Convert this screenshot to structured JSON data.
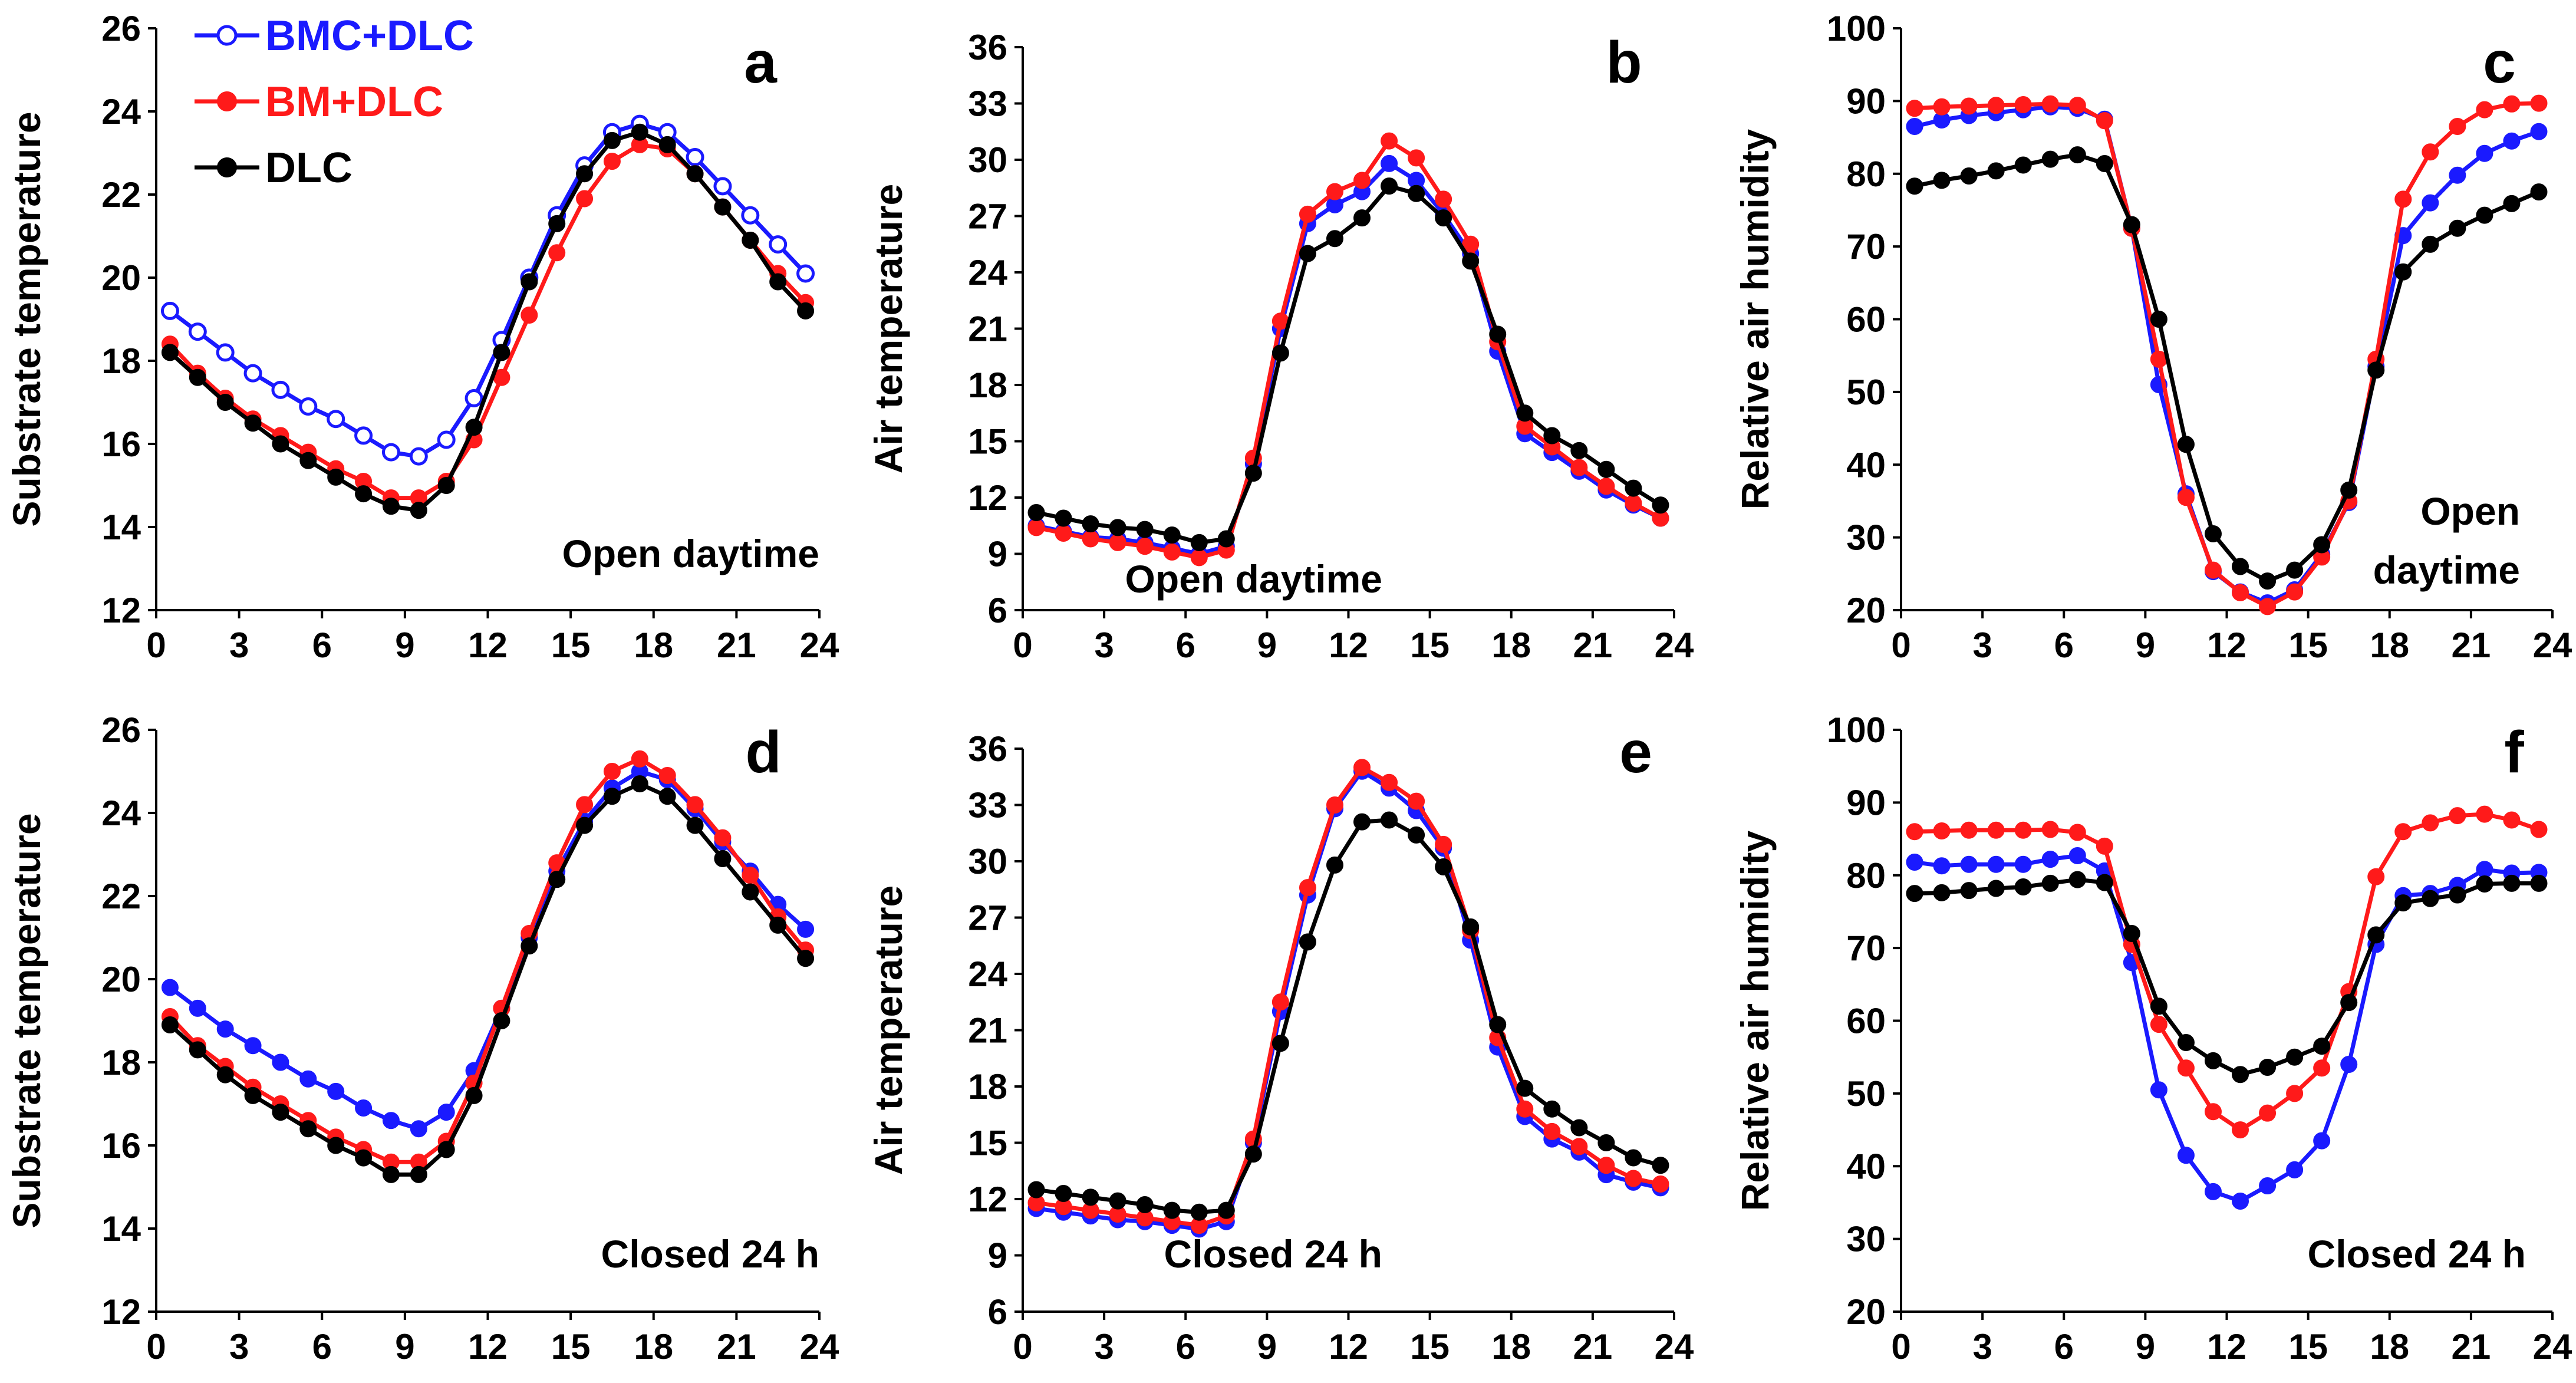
{
  "colors": {
    "blue": "#1a1aff",
    "red": "#ff1a1a",
    "black": "#000000"
  },
  "legend": [
    {
      "label": "BMC+DLC",
      "color": "#1a1aff",
      "marker": "open-circle-icon"
    },
    {
      "label": "BM+DLC",
      "color": "#ff1a1a",
      "marker": "filled-circle-icon"
    },
    {
      "label": "DLC",
      "color": "#000000",
      "marker": "filled-circle-icon"
    }
  ],
  "chart_data": [
    {
      "type": "line",
      "panel": "a",
      "annotation": [
        "Open daytime"
      ],
      "xlabel": "",
      "ylabel": "Substrate  temperature",
      "xlim": [
        0,
        24
      ],
      "ylim": [
        12,
        26
      ],
      "xticks": [
        0,
        3,
        6,
        9,
        12,
        15,
        18,
        21,
        24
      ],
      "yticks": [
        12,
        14,
        16,
        18,
        20,
        22,
        24,
        26
      ],
      "x": [
        0.5,
        1.5,
        2.5,
        3.5,
        4.5,
        5.5,
        6.5,
        7.5,
        8.5,
        9.5,
        10.5,
        11.5,
        12.5,
        13.5,
        14.5,
        15.5,
        16.5,
        17.5,
        18.5,
        19.5,
        20.5,
        21.5,
        22.5,
        23.5
      ],
      "series": [
        {
          "name": "BMC+DLC",
          "color": "#1a1aff",
          "marker": "open",
          "values": [
            19.2,
            18.7,
            18.2,
            17.7,
            17.3,
            16.9,
            16.6,
            16.2,
            15.8,
            15.7,
            16.1,
            17.1,
            18.5,
            20.0,
            21.5,
            22.7,
            23.5,
            23.7,
            23.5,
            22.9,
            22.2,
            21.5,
            20.8,
            20.1
          ]
        },
        {
          "name": "BM+DLC",
          "color": "#ff1a1a",
          "marker": "filled",
          "values": [
            18.4,
            17.7,
            17.1,
            16.6,
            16.2,
            15.8,
            15.4,
            15.1,
            14.7,
            14.7,
            15.1,
            16.1,
            17.6,
            19.1,
            20.6,
            21.9,
            22.8,
            23.2,
            23.1,
            22.5,
            21.7,
            20.9,
            20.1,
            19.4
          ]
        },
        {
          "name": "DLC",
          "color": "#000000",
          "marker": "filled",
          "values": [
            18.2,
            17.6,
            17.0,
            16.5,
            16.0,
            15.6,
            15.2,
            14.8,
            14.5,
            14.4,
            15.0,
            16.4,
            18.2,
            19.9,
            21.3,
            22.5,
            23.3,
            23.5,
            23.2,
            22.5,
            21.7,
            20.9,
            19.9,
            19.2
          ]
        }
      ]
    },
    {
      "type": "line",
      "panel": "b",
      "annotation": [
        "Open daytime"
      ],
      "xlabel": "",
      "ylabel": "Air temperature",
      "xlim": [
        0,
        24
      ],
      "ylim": [
        6,
        36
      ],
      "xticks": [
        0,
        3,
        6,
        9,
        12,
        15,
        18,
        21,
        24
      ],
      "yticks": [
        6,
        9,
        12,
        15,
        18,
        21,
        24,
        27,
        30,
        33,
        36
      ],
      "x": [
        0.5,
        1.5,
        2.5,
        3.5,
        4.5,
        5.5,
        6.5,
        7.5,
        8.5,
        9.5,
        10.5,
        11.5,
        12.5,
        13.5,
        14.5,
        15.5,
        16.5,
        17.5,
        18.5,
        19.5,
        20.5,
        21.5,
        22.5,
        23.5
      ],
      "series": [
        {
          "name": "BMC+DLC",
          "color": "#1a1aff",
          "marker": "filled",
          "values": [
            10.5,
            10.2,
            9.9,
            9.8,
            9.6,
            9.3,
            9.0,
            9.4,
            13.8,
            21.0,
            26.6,
            27.6,
            28.3,
            29.8,
            28.9,
            27.1,
            25.0,
            19.8,
            15.4,
            14.4,
            13.4,
            12.4,
            11.6,
            10.9
          ]
        },
        {
          "name": "BM+DLC",
          "color": "#ff1a1a",
          "marker": "filled",
          "values": [
            10.4,
            10.1,
            9.8,
            9.6,
            9.4,
            9.1,
            8.8,
            9.2,
            14.1,
            21.4,
            27.1,
            28.3,
            28.9,
            31.0,
            30.1,
            27.9,
            25.5,
            20.3,
            15.8,
            14.7,
            13.6,
            12.6,
            11.7,
            10.9
          ]
        },
        {
          "name": "DLC",
          "color": "#000000",
          "marker": "filled",
          "values": [
            11.2,
            10.9,
            10.6,
            10.4,
            10.3,
            10.0,
            9.6,
            9.8,
            13.3,
            19.7,
            25.0,
            25.8,
            26.9,
            28.6,
            28.2,
            26.9,
            24.6,
            20.7,
            16.5,
            15.3,
            14.5,
            13.5,
            12.5,
            11.6
          ]
        }
      ]
    },
    {
      "type": "line",
      "panel": "c",
      "annotation": [
        "Open",
        "daytime"
      ],
      "xlabel": "",
      "ylabel": "Relative  air humidity",
      "xlim": [
        0,
        24
      ],
      "ylim": [
        20,
        100
      ],
      "xticks": [
        0,
        3,
        6,
        9,
        12,
        15,
        18,
        21,
        24
      ],
      "yticks": [
        20,
        30,
        40,
        50,
        60,
        70,
        80,
        90,
        100
      ],
      "x": [
        0.5,
        1.5,
        2.5,
        3.5,
        4.5,
        5.5,
        6.5,
        7.5,
        8.5,
        9.5,
        10.5,
        11.5,
        12.5,
        13.5,
        14.5,
        15.5,
        16.5,
        17.5,
        18.5,
        19.5,
        20.5,
        21.5,
        22.5,
        23.5
      ],
      "series": [
        {
          "name": "BMC+DLC",
          "color": "#1a1aff",
          "marker": "filled",
          "values": [
            86.5,
            87.4,
            88.0,
            88.4,
            88.8,
            89.2,
            89.0,
            87.5,
            72.5,
            51.0,
            36.0,
            25.3,
            22.5,
            21.0,
            22.8,
            27.7,
            34.8,
            53.5,
            71.5,
            76.0,
            79.8,
            82.8,
            84.5,
            85.8
          ]
        },
        {
          "name": "BM+DLC",
          "color": "#ff1a1a",
          "marker": "filled",
          "values": [
            89.0,
            89.2,
            89.3,
            89.4,
            89.5,
            89.6,
            89.4,
            87.3,
            72.5,
            54.5,
            35.5,
            25.5,
            22.4,
            20.5,
            22.5,
            27.3,
            35.0,
            54.5,
            76.5,
            83.0,
            86.5,
            88.8,
            89.6,
            89.7
          ]
        },
        {
          "name": "DLC",
          "color": "#000000",
          "marker": "filled",
          "values": [
            78.3,
            79.1,
            79.7,
            80.4,
            81.2,
            82.0,
            82.6,
            81.4,
            73.0,
            60.0,
            42.8,
            30.5,
            26.0,
            24.0,
            25.5,
            29.0,
            36.5,
            53.0,
            66.5,
            70.3,
            72.5,
            74.3,
            75.9,
            77.5
          ]
        }
      ]
    },
    {
      "type": "line",
      "panel": "d",
      "annotation": [
        "Closed 24 h"
      ],
      "xlabel": "",
      "ylabel": "Substrate  temperature",
      "xlim": [
        0,
        24
      ],
      "ylim": [
        12,
        26
      ],
      "xticks": [
        0,
        3,
        6,
        9,
        12,
        15,
        18,
        21,
        24
      ],
      "yticks": [
        12,
        14,
        16,
        18,
        20,
        22,
        24,
        26
      ],
      "x": [
        0.5,
        1.5,
        2.5,
        3.5,
        4.5,
        5.5,
        6.5,
        7.5,
        8.5,
        9.5,
        10.5,
        11.5,
        12.5,
        13.5,
        14.5,
        15.5,
        16.5,
        17.5,
        18.5,
        19.5,
        20.5,
        21.5,
        22.5,
        23.5
      ],
      "series": [
        {
          "name": "BMC+DLC",
          "color": "#1a1aff",
          "marker": "filled",
          "values": [
            19.8,
            19.3,
            18.8,
            18.4,
            18.0,
            17.6,
            17.3,
            16.9,
            16.6,
            16.4,
            16.8,
            17.8,
            19.3,
            21.0,
            22.6,
            23.8,
            24.6,
            25.0,
            24.8,
            24.1,
            23.3,
            22.6,
            21.8,
            21.2
          ]
        },
        {
          "name": "BM+DLC",
          "color": "#ff1a1a",
          "marker": "filled",
          "values": [
            19.1,
            18.4,
            17.9,
            17.4,
            17.0,
            16.6,
            16.2,
            15.9,
            15.6,
            15.6,
            16.1,
            17.5,
            19.3,
            21.1,
            22.8,
            24.2,
            25.0,
            25.3,
            24.9,
            24.2,
            23.4,
            22.5,
            21.5,
            20.7
          ]
        },
        {
          "name": "DLC",
          "color": "#000000",
          "marker": "filled",
          "values": [
            18.9,
            18.3,
            17.7,
            17.2,
            16.8,
            16.4,
            16.0,
            15.7,
            15.3,
            15.3,
            15.9,
            17.2,
            19.0,
            20.8,
            22.4,
            23.7,
            24.4,
            24.7,
            24.4,
            23.7,
            22.9,
            22.1,
            21.3,
            20.5
          ]
        }
      ]
    },
    {
      "type": "line",
      "panel": "e",
      "annotation": [
        "Closed 24 h"
      ],
      "xlabel": "",
      "ylabel": "Air temperature",
      "xlim": [
        0,
        24
      ],
      "ylim": [
        6,
        36
      ],
      "xticks": [
        0,
        3,
        6,
        9,
        12,
        15,
        18,
        21,
        24
      ],
      "yticks": [
        6,
        9,
        12,
        15,
        18,
        21,
        24,
        27,
        30,
        33,
        36
      ],
      "x": [
        0.5,
        1.5,
        2.5,
        3.5,
        4.5,
        5.5,
        6.5,
        7.5,
        8.5,
        9.5,
        10.5,
        11.5,
        12.5,
        13.5,
        14.5,
        15.5,
        16.5,
        17.5,
        18.5,
        19.5,
        20.5,
        21.5,
        22.5,
        23.5
      ],
      "series": [
        {
          "name": "BMC+DLC",
          "color": "#1a1aff",
          "marker": "filled",
          "values": [
            11.5,
            11.3,
            11.1,
            10.9,
            10.8,
            10.6,
            10.4,
            10.8,
            15.0,
            22.0,
            28.2,
            32.8,
            34.8,
            33.9,
            32.7,
            30.7,
            25.8,
            20.1,
            16.4,
            15.2,
            14.5,
            13.3,
            12.9,
            12.6
          ]
        },
        {
          "name": "BM+DLC",
          "color": "#ff1a1a",
          "marker": "filled",
          "values": [
            11.8,
            11.6,
            11.4,
            11.2,
            11.0,
            10.8,
            10.6,
            11.1,
            15.2,
            22.5,
            28.6,
            33.0,
            35.0,
            34.2,
            33.2,
            30.9,
            26.3,
            20.6,
            16.8,
            15.6,
            14.8,
            13.8,
            13.1,
            12.8
          ]
        },
        {
          "name": "DLC",
          "color": "#000000",
          "marker": "filled",
          "values": [
            12.5,
            12.3,
            12.1,
            11.9,
            11.7,
            11.4,
            11.3,
            11.4,
            14.4,
            20.3,
            25.7,
            29.8,
            32.1,
            32.2,
            31.4,
            29.7,
            26.5,
            21.3,
            17.9,
            16.8,
            15.8,
            15.0,
            14.2,
            13.8
          ]
        }
      ]
    },
    {
      "type": "line",
      "panel": "f",
      "annotation": [
        "Closed 24 h"
      ],
      "xlabel": "",
      "ylabel": "Relative  air humidity",
      "xlim": [
        0,
        24
      ],
      "ylim": [
        20,
        100
      ],
      "xticks": [
        0,
        3,
        6,
        9,
        12,
        15,
        18,
        21,
        24
      ],
      "yticks": [
        20,
        30,
        40,
        50,
        60,
        70,
        80,
        90,
        100
      ],
      "x": [
        0.5,
        1.5,
        2.5,
        3.5,
        4.5,
        5.5,
        6.5,
        7.5,
        8.5,
        9.5,
        10.5,
        11.5,
        12.5,
        13.5,
        14.5,
        15.5,
        16.5,
        17.5,
        18.5,
        19.5,
        20.5,
        21.5,
        22.5,
        23.5
      ],
      "series": [
        {
          "name": "BMC+DLC",
          "color": "#1a1aff",
          "marker": "filled",
          "values": [
            81.8,
            81.3,
            81.5,
            81.5,
            81.5,
            82.2,
            82.7,
            80.6,
            68.0,
            50.5,
            41.5,
            36.5,
            35.2,
            37.3,
            39.5,
            43.5,
            54.0,
            70.5,
            77.2,
            77.5,
            78.6,
            80.8,
            80.3,
            80.4
          ]
        },
        {
          "name": "BM+DLC",
          "color": "#ff1a1a",
          "marker": "filled",
          "values": [
            86.0,
            86.1,
            86.2,
            86.2,
            86.2,
            86.3,
            85.9,
            84.0,
            70.5,
            59.5,
            53.5,
            47.5,
            45.0,
            47.3,
            50.0,
            53.5,
            64.0,
            79.8,
            86.0,
            87.2,
            88.2,
            88.4,
            87.6,
            86.3
          ]
        },
        {
          "name": "DLC",
          "color": "#000000",
          "marker": "filled",
          "values": [
            77.5,
            77.6,
            77.9,
            78.2,
            78.4,
            78.9,
            79.4,
            79.0,
            72.0,
            62.0,
            57.0,
            54.5,
            52.6,
            53.6,
            55.0,
            56.5,
            62.5,
            71.8,
            76.2,
            76.8,
            77.3,
            78.8,
            78.9,
            78.9
          ]
        }
      ]
    }
  ]
}
